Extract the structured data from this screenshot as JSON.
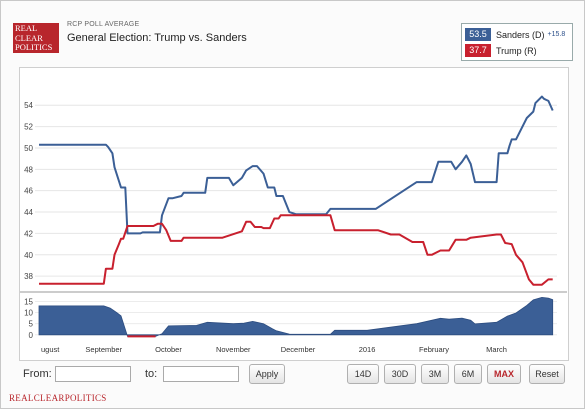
{
  "header": {
    "logo_lines": [
      "REAL",
      "CLEAR",
      "POLITICS"
    ],
    "kicker": "RCP POLL AVERAGE",
    "title": "General Election: Trump vs. Sanders"
  },
  "legend": [
    {
      "value": "53.5",
      "name": "Sanders (D)",
      "spread": "+15.8",
      "color": "#3b5f96"
    },
    {
      "value": "37.7",
      "name": "Trump (R)",
      "spread": "",
      "color": "#c8202e"
    }
  ],
  "controls": {
    "from_label": "From:",
    "to_label": "to:",
    "apply": "Apply",
    "ranges": [
      "14D",
      "30D",
      "3M",
      "6M",
      "MAX",
      "Reset"
    ],
    "active_range": "MAX"
  },
  "footer": "REALCLEARPOLITICS",
  "chart_data": {
    "type": "line",
    "x_tick_labels": [
      "ugust",
      "September",
      "October",
      "November",
      "December",
      "2016",
      "February",
      "March"
    ],
    "x_tick_day": [
      0,
      30,
      60,
      90,
      120,
      152,
      183,
      212
    ],
    "x_range_days": [
      0,
      240
    ],
    "ylim": [
      36.8,
      57.2
    ],
    "yticks": [
      38,
      40,
      42,
      44,
      46,
      48,
      50,
      52,
      54
    ],
    "grid": true,
    "series": [
      {
        "name": "Sanders (D)",
        "color": "#3b5f96",
        "x": [
          0,
          31,
          32,
          34,
          35,
          38,
          40,
          41,
          47,
          48,
          52,
          56,
          57,
          60,
          62,
          66,
          67,
          72,
          77,
          78,
          82,
          88,
          90,
          94,
          96,
          99,
          101,
          104,
          106,
          109,
          110,
          113,
          116,
          119,
          121,
          126,
          133,
          135,
          152,
          156,
          175,
          178,
          182,
          185,
          186,
          191,
          193,
          196,
          198,
          200,
          202,
          212,
          213,
          217,
          218,
          219,
          221,
          226,
          229,
          230,
          233,
          234,
          235,
          236,
          238
        ],
        "values": [
          50.3,
          50.3,
          50.1,
          49.5,
          48.2,
          46.3,
          46.3,
          42.0,
          42.0,
          42.1,
          42.1,
          42.1,
          43.7,
          45.3,
          45.3,
          45.5,
          45.8,
          45.8,
          45.8,
          47.2,
          47.2,
          47.2,
          46.5,
          47.2,
          47.9,
          48.3,
          48.3,
          47.6,
          46.3,
          46.3,
          45.5,
          45.5,
          44.0,
          43.8,
          43.8,
          43.8,
          43.8,
          44.3,
          44.3,
          44.3,
          46.8,
          46.8,
          46.8,
          48.7,
          48.7,
          48.7,
          48.0,
          48.7,
          49.3,
          48.5,
          46.8,
          46.8,
          49.5,
          49.5,
          50.2,
          50.8,
          50.8,
          52.8,
          53.4,
          54.2,
          54.8,
          54.6,
          54.5,
          54.4,
          53.5
        ]
      },
      {
        "name": "Trump (R)",
        "color": "#c8202e",
        "x": [
          0,
          30,
          31,
          34,
          35,
          37,
          38,
          39,
          41,
          47,
          50,
          53,
          55,
          57,
          59,
          61,
          62,
          66,
          67,
          74,
          85,
          94,
          96,
          98,
          100,
          103,
          104,
          107,
          109,
          111,
          112,
          117,
          135,
          137,
          152,
          157,
          163,
          167,
          173,
          178,
          180,
          182,
          186,
          190,
          193,
          198,
          200,
          212,
          214,
          216,
          219,
          221,
          224,
          227,
          229,
          233,
          236,
          238
        ],
        "values": [
          37.3,
          37.3,
          38.7,
          38.7,
          40.0,
          41.0,
          41.5,
          41.5,
          42.7,
          42.7,
          42.7,
          42.7,
          42.9,
          42.9,
          42.3,
          41.3,
          41.3,
          41.3,
          41.6,
          41.6,
          41.6,
          42.2,
          43.1,
          43.1,
          42.6,
          42.6,
          42.5,
          42.5,
          43.4,
          43.4,
          43.7,
          43.7,
          43.7,
          42.3,
          42.3,
          42.3,
          41.9,
          41.9,
          41.2,
          41.2,
          40.0,
          40.0,
          40.4,
          40.4,
          41.4,
          41.4,
          41.6,
          41.9,
          41.9,
          41.1,
          41.0,
          40.0,
          39.3,
          37.7,
          37.2,
          37.2,
          37.7,
          37.7
        ]
      }
    ],
    "navigator": {
      "yticks": [
        0,
        5,
        10,
        15
      ],
      "ylim": [
        -1,
        17
      ],
      "spread": [
        [
          0,
          13.0
        ],
        [
          30,
          13.0
        ],
        [
          33,
          12.0
        ],
        [
          36,
          10.0
        ],
        [
          38,
          8.5
        ],
        [
          41,
          -0.7
        ],
        [
          54,
          -0.7
        ],
        [
          57,
          0.5
        ],
        [
          60,
          4.0
        ],
        [
          73,
          4.2
        ],
        [
          78,
          5.6
        ],
        [
          90,
          5.0
        ],
        [
          95,
          5.2
        ],
        [
          99,
          6.0
        ],
        [
          104,
          5.0
        ],
        [
          108,
          2.8
        ],
        [
          110,
          1.8
        ],
        [
          116,
          0.3
        ],
        [
          135,
          0.2
        ],
        [
          137,
          2.0
        ],
        [
          152,
          2.0
        ],
        [
          175,
          5.0
        ],
        [
          186,
          7.4
        ],
        [
          190,
          7.0
        ],
        [
          196,
          7.5
        ],
        [
          200,
          6.5
        ],
        [
          202,
          4.9
        ],
        [
          212,
          5.6
        ],
        [
          217,
          8.4
        ],
        [
          221,
          9.8
        ],
        [
          226,
          13.2
        ],
        [
          229,
          15.7
        ],
        [
          233,
          16.8
        ],
        [
          236,
          16.5
        ],
        [
          238,
          15.8
        ]
      ]
    }
  }
}
